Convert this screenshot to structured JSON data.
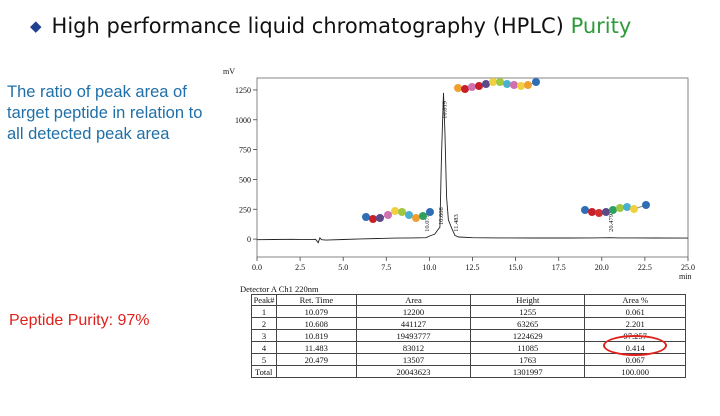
{
  "slide": {
    "title_main": "High performance liquid chromatography (HPLC)",
    "title_accent": "Purity",
    "description": "The ratio of peak area of target peptide in relation to all detected peak area",
    "purity_label": "Peptide Purity: 97%",
    "bullet_color": "#1f3f8f",
    "accent_color": "#2e9b3a",
    "highlight_color": "#e0201b"
  },
  "chart_data": {
    "type": "line",
    "ylabel": "mV",
    "xlabel": "min",
    "xlim": [
      0.0,
      25.0
    ],
    "ylim": [
      -150,
      1350
    ],
    "x_ticks": [
      "0.0",
      "2.5",
      "5.0",
      "7.5",
      "10.0",
      "12.5",
      "15.0",
      "17.5",
      "20.0",
      "22.5",
      "25.0"
    ],
    "y_ticks": [
      "0",
      "250",
      "500",
      "750",
      "1000",
      "1250"
    ],
    "peak_labels": [
      {
        "x": 10.079,
        "label": "10.079"
      },
      {
        "x": 10.608,
        "label": "10.608"
      },
      {
        "x": 10.819,
        "label": "10.819"
      },
      {
        "x": 11.483,
        "label": "11.483"
      },
      {
        "x": 20.479,
        "label": "20.479"
      }
    ],
    "trace": [
      [
        0.0,
        -5
      ],
      [
        1.0,
        -3
      ],
      [
        2.0,
        -2
      ],
      [
        3.0,
        -4
      ],
      [
        3.4,
        -2
      ],
      [
        3.55,
        -30
      ],
      [
        3.65,
        10
      ],
      [
        3.75,
        -5
      ],
      [
        4.0,
        -8
      ],
      [
        5.0,
        -3
      ],
      [
        6.0,
        2
      ],
      [
        7.0,
        5
      ],
      [
        8.0,
        8
      ],
      [
        9.0,
        10
      ],
      [
        9.8,
        12
      ],
      [
        10.079,
        30
      ],
      [
        10.3,
        40
      ],
      [
        10.5,
        80
      ],
      [
        10.608,
        100
      ],
      [
        10.7,
        700
      ],
      [
        10.819,
        1225
      ],
      [
        10.9,
        900
      ],
      [
        11.0,
        350
      ],
      [
        11.1,
        160
      ],
      [
        11.3,
        90
      ],
      [
        11.483,
        30
      ],
      [
        11.7,
        18
      ],
      [
        12.5,
        12
      ],
      [
        14.0,
        10
      ],
      [
        16.0,
        9
      ],
      [
        18.0,
        9
      ],
      [
        19.5,
        10
      ],
      [
        20.479,
        12
      ],
      [
        21.0,
        10
      ],
      [
        23.0,
        9
      ],
      [
        25.0,
        8
      ]
    ],
    "detector": "Detector A Ch1 220nm",
    "table": {
      "headers": [
        "Peak#",
        "Ret. Time",
        "Area",
        "Height",
        "Area %"
      ],
      "rows": [
        [
          "1",
          "10.079",
          "12200",
          "1255",
          "0.061"
        ],
        [
          "2",
          "10.608",
          "441127",
          "63265",
          "2.201"
        ],
        [
          "3",
          "10.819",
          "19493777",
          "1224629",
          "97.257"
        ],
        [
          "4",
          "11.483",
          "83012",
          "11085",
          "0.414"
        ],
        [
          "5",
          "20.479",
          "13507",
          "1763",
          "0.067"
        ]
      ],
      "total": [
        "Total",
        "",
        "20043623",
        "1301997",
        "100.000"
      ]
    }
  },
  "beads": {
    "chain_left": [
      "#2f6db5",
      "#c8202a",
      "#5a4a8a",
      "#d070b0",
      "#f0d040",
      "#a0c840",
      "#4ab0d0",
      "#f0a030",
      "#30a060",
      "#2f6db5"
    ],
    "chain_main": [
      "#f0a030",
      "#c8202a",
      "#d070b0",
      "#c8202a",
      "#5a4a8a",
      "#f0d040",
      "#a0c840",
      "#4ab0d0",
      "#d070b0",
      "#f0d040",
      "#f0a030",
      "#2f6db5"
    ],
    "chain_right": [
      "#2f6db5",
      "#c8202a",
      "#d03030",
      "#5a4a8a",
      "#30a060",
      "#a0c840",
      "#4ab0d0",
      "#f0d040",
      "#2f6db5"
    ]
  }
}
